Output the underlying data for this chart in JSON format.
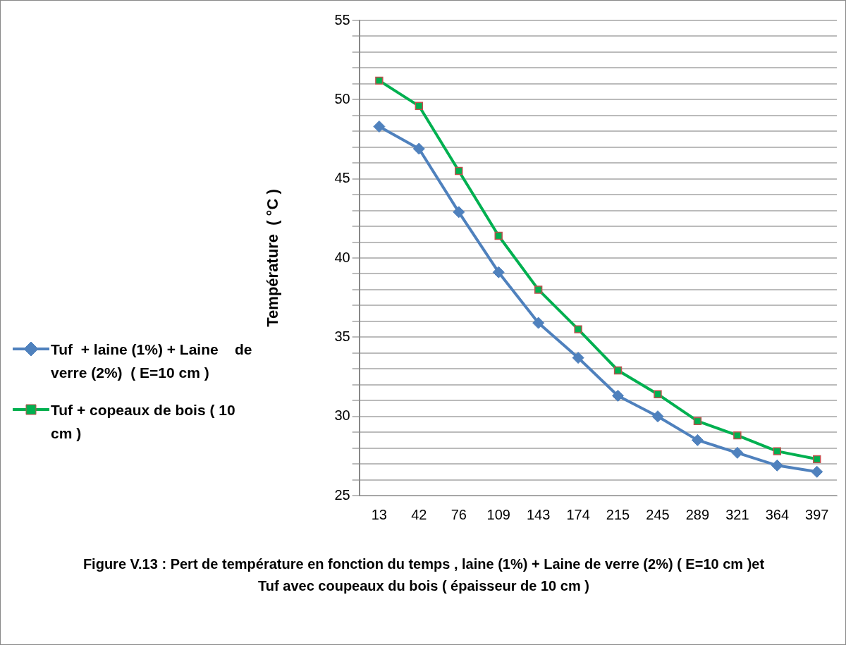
{
  "chart_data": {
    "type": "line",
    "ylabel": "Température  ( °C )",
    "categories": [
      "13",
      "42",
      "76",
      "109",
      "143",
      "174",
      "215",
      "245",
      "289",
      "321",
      "364",
      "397"
    ],
    "series": [
      {
        "name": "Tuf  + laine (1%) + Laine    de verre (2%)  ( E=10 cm )",
        "color": "#4f81bd",
        "marker": "diamond",
        "values": [
          48.3,
          46.9,
          42.9,
          39.1,
          35.9,
          33.7,
          31.3,
          30.0,
          28.5,
          27.7,
          26.9,
          26.5
        ]
      },
      {
        "name": "Tuf + copeaux de bois ( 10 cm )",
        "color": "#00b050",
        "marker": "square",
        "values": [
          51.2,
          49.6,
          45.5,
          41.4,
          38.0,
          35.5,
          32.9,
          31.4,
          29.7,
          28.8,
          27.8,
          27.3
        ]
      }
    ],
    "ylim": [
      25,
      55
    ],
    "yticks": [
      25,
      {
        "value": 26,
        "label": null
      },
      {
        "value": 27,
        "label": null
      },
      {
        "value": 28,
        "label": null
      },
      {
        "value": 29,
        "label": null
      },
      30,
      {
        "value": 31,
        "label": null
      },
      {
        "value": 32,
        "label": null
      },
      {
        "value": 33,
        "label": null
      },
      {
        "value": 34,
        "label": null
      },
      35,
      {
        "value": 36,
        "label": null
      },
      {
        "value": 37,
        "label": null
      },
      {
        "value": 38,
        "label": null
      },
      {
        "value": 39,
        "label": null
      },
      40,
      {
        "value": 41,
        "label": null
      },
      {
        "value": 42,
        "label": null
      },
      {
        "value": 43,
        "label": null
      },
      {
        "value": 44,
        "label": null
      },
      45,
      {
        "value": 46,
        "label": null
      },
      {
        "value": 47,
        "label": null
      },
      {
        "value": 48,
        "label": null
      },
      {
        "value": 49,
        "label": null
      },
      50,
      {
        "value": 51,
        "label": null
      },
      {
        "value": 52,
        "label": null
      },
      {
        "value": 53,
        "label": null
      },
      {
        "value": 54,
        "label": null
      },
      55
    ],
    "grid": "y",
    "legend": "left",
    "line_style": "solid",
    "annotations": [
      "Figure V.13 :  Pert de température en fonction du temps  , laine (1%) + Laine    de verre (2%)  ( E=10 cm )et Tuf avec coupeaux du bois ( épaisseur de 10 cm )"
    ]
  }
}
